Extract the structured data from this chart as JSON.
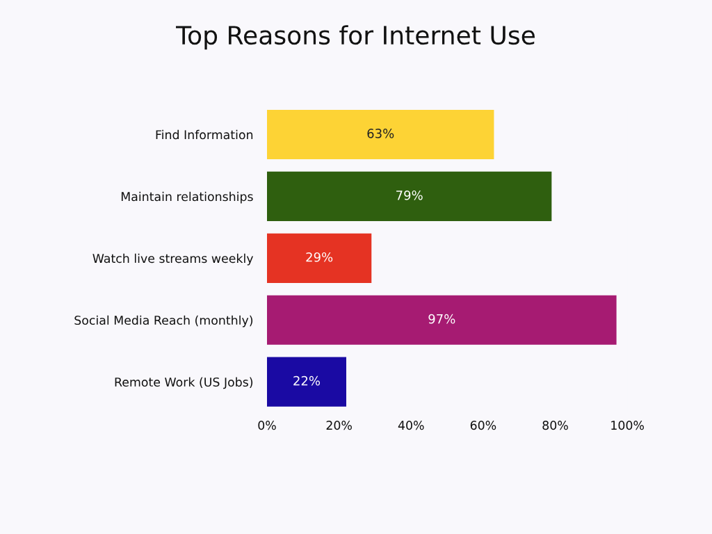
{
  "chart_data": {
    "type": "bar",
    "orientation": "horizontal",
    "title": "Top Reasons for Internet Use",
    "categories": [
      "Find Information",
      "Maintain relationships",
      "Watch live streams weekly",
      "Social Media Reach (monthly)",
      "Remote Work (US Jobs)"
    ],
    "values": [
      63,
      79,
      29,
      97,
      22
    ],
    "colors": [
      "#fdd335",
      "#2f5f0f",
      "#e53323",
      "#a61b72",
      "#1a0aa3"
    ],
    "value_labels": [
      "63%",
      "79%",
      "29%",
      "97%",
      "22%"
    ],
    "xlim": [
      0,
      100
    ],
    "xticks": [
      {
        "value": 0,
        "label": "0%"
      },
      {
        "value": 20,
        "label": "20%"
      },
      {
        "value": 40,
        "label": "40%"
      },
      {
        "value": 60,
        "label": "60%"
      },
      {
        "value": 80,
        "label": "80%"
      },
      {
        "value": 100,
        "label": "100%"
      }
    ],
    "grid": false
  }
}
